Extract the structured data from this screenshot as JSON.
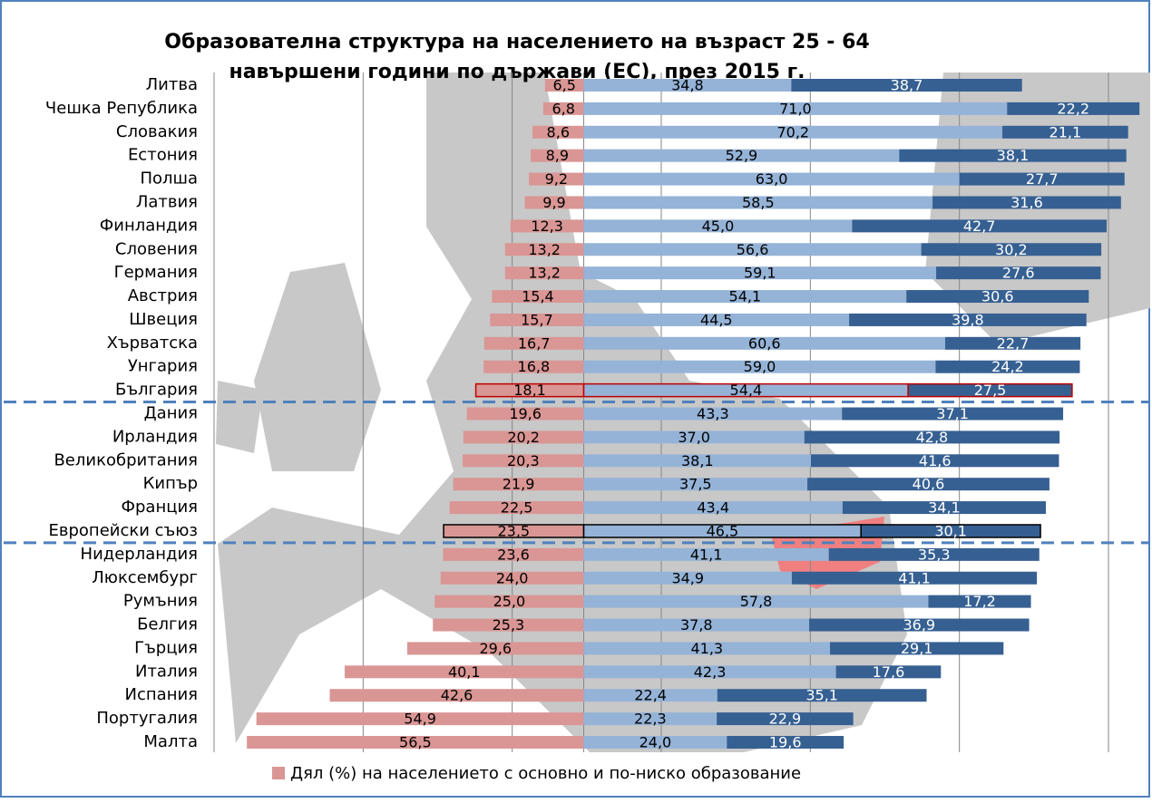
{
  "chart_data": {
    "type": "bar",
    "orientation": "horizontal",
    "stacked": true,
    "diverging": true,
    "title": [
      "Образователна структура на населението на възраст 25 - 64",
      "навършени години по държави (ЕС), през 2015 г."
    ],
    "categories": [
      "Литва",
      "Чешка Република",
      "Словакия",
      "Естония",
      "Полша",
      "Латвия",
      "Финландия",
      "Словения",
      "Германия",
      "Австрия",
      "Швеция",
      "Хърватска",
      "Унгария",
      "България",
      "Дания",
      "Ирландия",
      "Великобритания",
      "Кипър",
      "Франция",
      "Европейски съюз",
      "Нидерландия",
      "Люксембург",
      "Румъния",
      "Белгия",
      "Гърция",
      "Италия",
      "Испания",
      "Португалия",
      "Малта"
    ],
    "series": [
      {
        "name": "Дял (%) на населението с основно и по-ниско образование",
        "color": "#d99694",
        "values": [
          6.5,
          6.8,
          8.6,
          8.9,
          9.2,
          9.9,
          12.3,
          13.2,
          13.2,
          15.4,
          15.7,
          16.7,
          16.8,
          18.1,
          19.6,
          20.2,
          20.3,
          21.9,
          22.5,
          23.5,
          23.6,
          24.0,
          25.0,
          25.3,
          29.6,
          40.1,
          42.6,
          54.9,
          56.5
        ],
        "value_labels": [
          "6,5",
          "6,8",
          "8,6",
          "8,9",
          "9,2",
          "9,9",
          "12,3",
          "13,2",
          "13,2",
          "15,4",
          "15,7",
          "16,7",
          "16,8",
          "18,1",
          "19,6",
          "20,2",
          "20,3",
          "21,9",
          "22,5",
          "23,5",
          "23,6",
          "24,0",
          "25,0",
          "25,3",
          "29,6",
          "40,1",
          "42,6",
          "54,9",
          "56,5"
        ]
      },
      {
        "color": "#95b3d7",
        "values": [
          34.8,
          71.0,
          70.2,
          52.9,
          63.0,
          58.5,
          45.0,
          56.6,
          59.1,
          54.1,
          44.5,
          60.6,
          59.0,
          54.4,
          43.3,
          37.0,
          38.1,
          37.5,
          43.4,
          46.5,
          41.1,
          34.9,
          57.8,
          37.8,
          41.3,
          42.3,
          22.4,
          22.3,
          24.0
        ],
        "value_labels": [
          "34,8",
          "71,0",
          "70,2",
          "52,9",
          "63,0",
          "58,5",
          "45,0",
          "56,6",
          "59,1",
          "54,1",
          "44,5",
          "60,6",
          "59,0",
          "54,4",
          "43,3",
          "37,0",
          "38,1",
          "37,5",
          "43,4",
          "46,5",
          "41,1",
          "34,9",
          "57,8",
          "37,8",
          "41,3",
          "42,3",
          "22,4",
          "22,3",
          "24,0"
        ]
      },
      {
        "color": "#366092",
        "values": [
          38.7,
          22.2,
          21.1,
          38.1,
          27.7,
          31.6,
          42.7,
          30.2,
          27.6,
          30.6,
          39.8,
          22.7,
          24.2,
          27.5,
          37.1,
          42.8,
          41.6,
          40.6,
          34.1,
          30.1,
          35.3,
          41.1,
          17.2,
          36.9,
          29.1,
          17.6,
          35.1,
          22.9,
          19.6
        ],
        "value_labels": [
          "38,7",
          "22,2",
          "21,1",
          "38,1",
          "27,7",
          "31,6",
          "42,7",
          "30,2",
          "27,6",
          "30,6",
          "39,8",
          "22,7",
          "24,2",
          "27,5",
          "37,1",
          "42,8",
          "41,6",
          "40,6",
          "34,1",
          "30,1",
          "35,3",
          "41,1",
          "17,2",
          "36,9",
          "29,1",
          "17,6",
          "35,1",
          "22,9",
          "19,6"
        ]
      }
    ],
    "xlim": [
      -62,
      88
    ],
    "xticks": [
      -62,
      -37,
      -12,
      13,
      38,
      63,
      88
    ],
    "grid": true,
    "highlight": [
      13,
      19
    ],
    "highlight_colors": [
      "#c00000",
      "#000000"
    ],
    "legend": "bottom"
  }
}
